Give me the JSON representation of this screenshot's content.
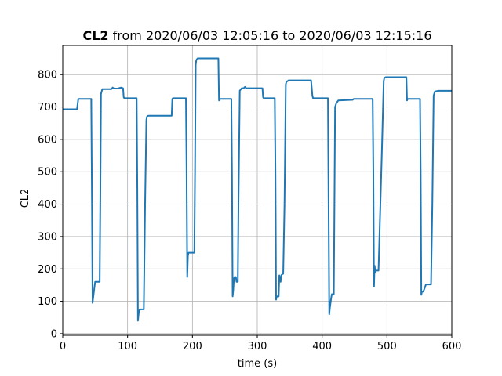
{
  "chart_data": {
    "type": "line",
    "title": {
      "bold": "CL2",
      "rest": " from 2020/06/03 12:05:16 to 2020/06/03 12:15:16"
    },
    "xlabel": "time (s)",
    "ylabel": "CL2",
    "xlim": [
      0,
      600
    ],
    "ylim": [
      -5,
      890
    ],
    "grid": true,
    "x_ticks": [
      0,
      100,
      200,
      300,
      400,
      500,
      600
    ],
    "y_ticks": [
      0,
      100,
      200,
      300,
      400,
      500,
      600,
      700,
      800
    ],
    "line_color": "#1f77b4",
    "series": [
      {
        "x": [
          0,
          22,
          24,
          44,
          45,
          46,
          49,
          50,
          57,
          58,
          59,
          61,
          75,
          77,
          79,
          85,
          90,
          93,
          94,
          95,
          114,
          115,
          116,
          117,
          118,
          120,
          125,
          127,
          129,
          130,
          132,
          140,
          168,
          169,
          170,
          187,
          190,
          191,
          192,
          193,
          194,
          203,
          204,
          205,
          206,
          208,
          240,
          241,
          242,
          244,
          260,
          261,
          262,
          263,
          264,
          265,
          267,
          268,
          270,
          271,
          273,
          276,
          279,
          281,
          283,
          290,
          308,
          309,
          310,
          327,
          328,
          329,
          330,
          333,
          334,
          336,
          337,
          339,
          340,
          342,
          344,
          345,
          347,
          348,
          350,
          355,
          358,
          363,
          383,
          385,
          386,
          387,
          409,
          410,
          411,
          412,
          414,
          415,
          418,
          419,
          420,
          422,
          425,
          445,
          447,
          449,
          475,
          476,
          478,
          479,
          480,
          481,
          482,
          483,
          485,
          487,
          492,
          495,
          496,
          498,
          530,
          531,
          532,
          533,
          551,
          552,
          553,
          554,
          556,
          559,
          560,
          562,
          564,
          566,
          568,
          570,
          572,
          574,
          580,
          600
        ],
        "y": [
          693,
          693,
          725,
          725,
          430,
          95,
          145,
          160,
          160,
          430,
          740,
          755,
          755,
          760,
          757,
          757,
          760,
          758,
          730,
          727,
          727,
          450,
          40,
          60,
          72,
          75,
          75,
          400,
          660,
          670,
          673,
          673,
          673,
          725,
          727,
          727,
          727,
          500,
          175,
          240,
          250,
          250,
          500,
          830,
          845,
          850,
          850,
          720,
          725,
          725,
          725,
          500,
          115,
          135,
          170,
          175,
          175,
          160,
          160,
          400,
          750,
          758,
          758,
          762,
          758,
          758,
          758,
          730,
          727,
          727,
          500,
          105,
          115,
          115,
          180,
          160,
          180,
          185,
          185,
          400,
          770,
          778,
          780,
          782,
          782,
          782,
          782,
          782,
          782,
          735,
          727,
          727,
          727,
          400,
          60,
          80,
          110,
          122,
          122,
          400,
          700,
          712,
          720,
          722,
          722,
          725,
          725,
          725,
          725,
          500,
          145,
          210,
          190,
          195,
          195,
          195,
          550,
          780,
          790,
          792,
          792,
          720,
          725,
          725,
          725,
          500,
          120,
          130,
          130,
          145,
          152,
          152,
          152,
          152,
          152,
          400,
          735,
          748,
          750,
          750
        ]
      }
    ]
  }
}
